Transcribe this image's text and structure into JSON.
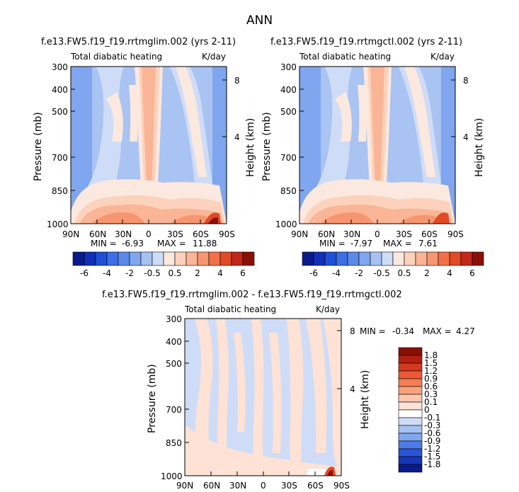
{
  "figure_title": "ANN",
  "panels": [
    {
      "title": "f.e13.FW5.f19_f19.rrtmglim.002 (yrs 2-11)",
      "left_label": "Total diabatic heating",
      "right_label": "K/day",
      "ylabel": "Pressure (mb)",
      "ylabel_right": "Height (km)",
      "pressure_ticks": [
        "300",
        "400",
        "500",
        "700",
        "850",
        "1000"
      ],
      "height_ticks": [
        "8",
        "4"
      ],
      "lat_ticks": [
        "90N",
        "60N",
        "30N",
        "0",
        "30S",
        "60S",
        "90S"
      ],
      "min_label": "MIN =",
      "min": "-6.93",
      "max_label": "MAX =",
      "max": "11.88"
    },
    {
      "title": "f.e13.FW5.f19_f19.rrtmgctl.002 (yrs 2-11)",
      "left_label": "Total diabatic heating",
      "right_label": "K/day",
      "ylabel": "Pressure (mb)",
      "ylabel_right": "Height (km)",
      "pressure_ticks": [
        "300",
        "400",
        "500",
        "700",
        "850",
        "1000"
      ],
      "height_ticks": [
        "8",
        "4"
      ],
      "lat_ticks": [
        "90N",
        "60N",
        "30N",
        "0",
        "30S",
        "60S",
        "90S"
      ],
      "min_label": "MIN =",
      "min": "-7.97",
      "max_label": "MAX =",
      "max": "7.61"
    },
    {
      "title": "f.e13.FW5.f19_f19.rrtmglim.002 - f.e13.FW5.f19_f19.rrtmgctl.002",
      "left_label": "Total diabatic heating",
      "right_label": "K/day",
      "ylabel": "Pressure (mb)",
      "ylabel_right": "Height (km)",
      "pressure_ticks": [
        "300",
        "400",
        "500",
        "700",
        "850",
        "1000"
      ],
      "height_ticks": [
        "8",
        "4"
      ],
      "lat_ticks": [
        "90N",
        "60N",
        "30N",
        "0",
        "30S",
        "60S",
        "90S"
      ],
      "min_label": "MIN =",
      "min": "-0.34",
      "max_label": "MAX =",
      "max": "4.27"
    }
  ],
  "colorbar_top": {
    "labels": [
      "-6",
      "-4",
      "-2",
      "-0.5",
      "0.5",
      "2",
      "4",
      "6"
    ],
    "colors": [
      "#0a1a8a",
      "#1030b8",
      "#1f4fd6",
      "#3a6fe6",
      "#5a8ae8",
      "#7fa6ee",
      "#a6c2f2",
      "#cfdcf7",
      "#fbe8df",
      "#fcd2bc",
      "#f9b596",
      "#f6966f",
      "#f27048",
      "#e04a25",
      "#c2281a",
      "#8a1005"
    ]
  },
  "colorbar_diff": {
    "labels": [
      "1.8",
      "1.5",
      "1.2",
      "0.9",
      "0.6",
      "0.3",
      "0.1",
      "0",
      "-0.1",
      "-0.3",
      "-0.6",
      "-0.9",
      "-1.2",
      "-1.5",
      "-1.8"
    ],
    "colors": [
      "#8a1005",
      "#b61e12",
      "#d6381d",
      "#ec5a34",
      "#f47d54",
      "#f8a27c",
      "#fbc6ab",
      "#fde2d5",
      "#ffffff",
      "#cfdcf7",
      "#a6c2f2",
      "#7fa6ee",
      "#4f7be6",
      "#2a55d6",
      "#1636b8",
      "#0a1a8a"
    ]
  },
  "chart_data": [
    {
      "type": "heatmap",
      "title": "f.e13.FW5.f19_f19.rrtmglim.002 (yrs 2-11)",
      "xlabel": "",
      "ylabel": "Pressure (mb)",
      "y2label": "Height (km)",
      "x_ticks": [
        "90N",
        "60N",
        "30N",
        "0",
        "30S",
        "60S",
        "90S"
      ],
      "y_ticks_mb": [
        300,
        400,
        500,
        700,
        850,
        1000
      ],
      "y2_ticks_km": [
        8,
        4
      ],
      "variable": "Total diabatic heating",
      "units": "K/day",
      "min": -6.93,
      "max": 11.88,
      "contour_levels": [
        -6,
        -5,
        -4,
        -3,
        -2,
        -1,
        -0.5,
        0,
        0.5,
        1,
        2,
        3,
        4,
        5,
        6
      ]
    },
    {
      "type": "heatmap",
      "title": "f.e13.FW5.f19_f19.rrtmgctl.002 (yrs 2-11)",
      "xlabel": "",
      "ylabel": "Pressure (mb)",
      "y2label": "Height (km)",
      "x_ticks": [
        "90N",
        "60N",
        "30N",
        "0",
        "30S",
        "60S",
        "90S"
      ],
      "y_ticks_mb": [
        300,
        400,
        500,
        700,
        850,
        1000
      ],
      "y2_ticks_km": [
        8,
        4
      ],
      "variable": "Total diabatic heating",
      "units": "K/day",
      "min": -7.97,
      "max": 7.61,
      "contour_levels": [
        -6,
        -5,
        -4,
        -3,
        -2,
        -1,
        -0.5,
        0,
        0.5,
        1,
        2,
        3,
        4,
        5,
        6
      ]
    },
    {
      "type": "heatmap",
      "title": "f.e13.FW5.f19_f19.rrtmglim.002 - f.e13.FW5.f19_f19.rrtmgctl.002",
      "xlabel": "",
      "ylabel": "Pressure (mb)",
      "y2label": "Height (km)",
      "x_ticks": [
        "90N",
        "60N",
        "30N",
        "0",
        "30S",
        "60S",
        "90S"
      ],
      "y_ticks_mb": [
        300,
        400,
        500,
        700,
        850,
        1000
      ],
      "y2_ticks_km": [
        8,
        4
      ],
      "variable": "Total diabatic heating",
      "units": "K/day",
      "min": -0.34,
      "max": 4.27,
      "contour_levels": [
        -1.8,
        -1.5,
        -1.2,
        -0.9,
        -0.6,
        -0.3,
        -0.1,
        0,
        0.1,
        0.3,
        0.6,
        0.9,
        1.2,
        1.5,
        1.8
      ]
    }
  ]
}
